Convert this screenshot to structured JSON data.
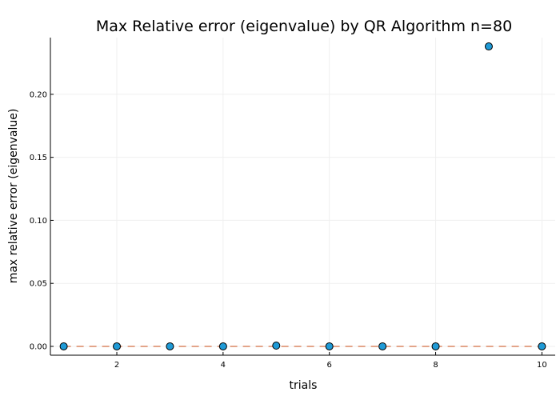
{
  "chart_data": {
    "type": "scatter",
    "title": "Max Relative error (eigenvalue) by QR Algorithm  n=80",
    "xlabel": "trials",
    "ylabel": "max relative error (eigenvalue)",
    "xlim": [
      0.75,
      10.25
    ],
    "ylim": [
      -0.007,
      0.245
    ],
    "xticks": [
      2,
      4,
      6,
      8,
      10
    ],
    "yticks": [
      0.0,
      0.05,
      0.1,
      0.15,
      0.2
    ],
    "xtick_labels": [
      "2",
      "4",
      "6",
      "8",
      "10"
    ],
    "ytick_labels": [
      "0.00",
      "0.05",
      "0.10",
      "0.15",
      "0.20"
    ],
    "grid": true,
    "series": [
      {
        "type": "scatter",
        "color": "#1f9ad6",
        "points": [
          {
            "x": 1,
            "y": 0.0
          },
          {
            "x": 2,
            "y": 0.0
          },
          {
            "x": 3,
            "y": 0.0
          },
          {
            "x": 4,
            "y": 0.0
          },
          {
            "x": 5,
            "y": 0.0006
          },
          {
            "x": 6,
            "y": 0.0
          },
          {
            "x": 7,
            "y": 0.0
          },
          {
            "x": 8,
            "y": 0.0
          },
          {
            "x": 9,
            "y": 0.238
          },
          {
            "x": 10,
            "y": 0.0
          }
        ]
      },
      {
        "type": "line",
        "style": "dashed",
        "color": "#e3a58a",
        "points": [
          {
            "x": 1,
            "y": 0.0
          },
          {
            "x": 10,
            "y": 0.0
          }
        ]
      }
    ]
  }
}
